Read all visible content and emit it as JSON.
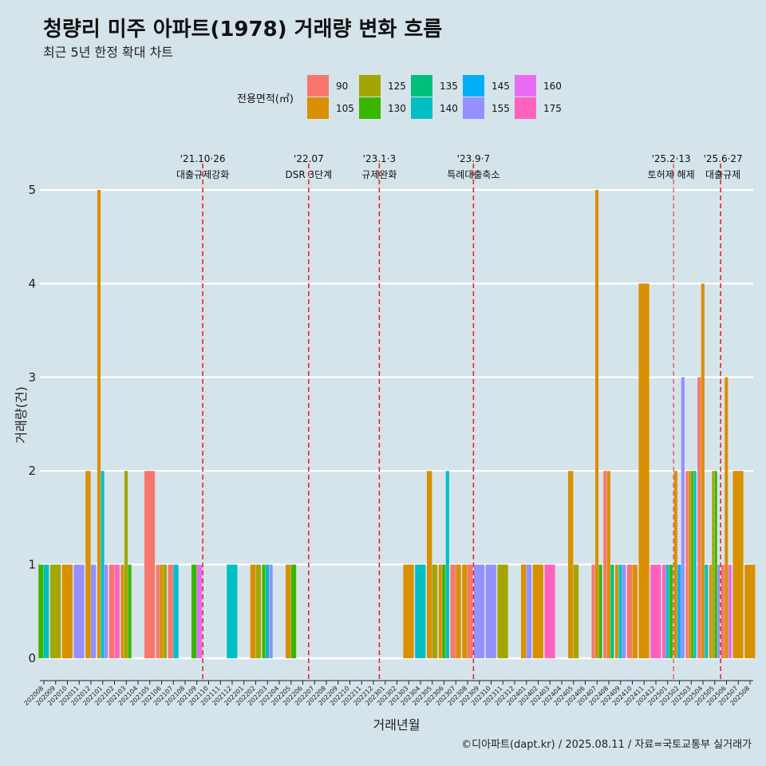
{
  "header": {
    "title": "청량리 미주 아파트(1978) 거래량 변화 흐름",
    "subtitle": "최근 5년 한정 확대 차트",
    "caption": "©디아파트(dapt.kr) / 2025.08.11 / 자료=국토교통부 실거래가"
  },
  "colors": {
    "background": "#d5e3ea",
    "event_line": "#e8262a",
    "gridline": "#ffffff"
  },
  "chart_data": {
    "type": "bar",
    "title": "청량리 미주 아파트(1978) 거래량 변화 흐름",
    "subtitle": "최근 5년 한정 확대 차트",
    "xlabel": "거래년월",
    "ylabel": "거래량(건)",
    "ylim": [
      0,
      5
    ],
    "yticks": [
      0,
      1,
      2,
      3,
      4,
      5
    ],
    "grid": true,
    "legend": {
      "title": "전용면적(㎡)",
      "position": "top",
      "entries": [
        {
          "name": "90",
          "color": "#f8766d"
        },
        {
          "name": "105",
          "color": "#d89000"
        },
        {
          "name": "125",
          "color": "#a3a500"
        },
        {
          "name": "130",
          "color": "#39b600"
        },
        {
          "name": "135",
          "color": "#00bf7d"
        },
        {
          "name": "140",
          "color": "#00bfc4"
        },
        {
          "name": "145",
          "color": "#00b0f6"
        },
        {
          "name": "155",
          "color": "#9590ff"
        },
        {
          "name": "160",
          "color": "#e76bf3"
        },
        {
          "name": "175",
          "color": "#ff62bc"
        }
      ]
    },
    "x_range": [
      "202008",
      "202508"
    ],
    "x_tick_labels": [
      "202008",
      "202009",
      "202010",
      "202011",
      "202012",
      "202101",
      "202102",
      "202103",
      "202104",
      "202105",
      "202106",
      "202107",
      "202108",
      "202109",
      "202110",
      "202111",
      "202112",
      "202201",
      "202202",
      "202203",
      "202204",
      "202205",
      "202206",
      "202207",
      "202208",
      "202209",
      "202210",
      "202211",
      "202212",
      "202301",
      "202302",
      "202303",
      "202304",
      "202305",
      "202306",
      "202307",
      "202308",
      "202309",
      "202310",
      "202311",
      "202312",
      "202401",
      "202402",
      "202403",
      "202404",
      "202405",
      "202406",
      "202407",
      "202408",
      "202409",
      "202410",
      "202411",
      "202412",
      "202501",
      "202502",
      "202503",
      "202504",
      "202505",
      "202506",
      "202507",
      "202508"
    ],
    "events": [
      {
        "month": "202110",
        "date_label": "'21.10·26",
        "label": "대출규제강화"
      },
      {
        "month": "202207",
        "date_label": "'22.07",
        "label": "DSR 3단계"
      },
      {
        "month": "202301",
        "date_label": "'23.1·3",
        "label": "규제완화"
      },
      {
        "month": "202309",
        "date_label": "'23.9·7",
        "label": "특례대출축소"
      },
      {
        "month": "202502",
        "date_label": "'25.2·13",
        "label": "토허제 해제"
      },
      {
        "month": "202506",
        "date_label": "'25.6·27",
        "label": "대출규제"
      }
    ],
    "series": [
      {
        "month": "202008",
        "bars": [
          {
            "area": "130",
            "count": 1
          },
          {
            "area": "140",
            "count": 1
          }
        ]
      },
      {
        "month": "202009",
        "bars": [
          {
            "area": "125",
            "count": 1
          }
        ]
      },
      {
        "month": "202010",
        "bars": [
          {
            "area": "105",
            "count": 1
          }
        ]
      },
      {
        "month": "202011",
        "bars": [
          {
            "area": "155",
            "count": 1
          }
        ]
      },
      {
        "month": "202012",
        "bars": [
          {
            "area": "105",
            "count": 2
          },
          {
            "area": "155",
            "count": 1
          }
        ]
      },
      {
        "month": "202101",
        "bars": [
          {
            "area": "105",
            "count": 5
          },
          {
            "area": "140",
            "count": 2
          },
          {
            "area": "155",
            "count": 1
          }
        ]
      },
      {
        "month": "202102",
        "bars": [
          {
            "area": "90",
            "count": 1
          },
          {
            "area": "175",
            "count": 1
          }
        ]
      },
      {
        "month": "202103",
        "bars": [
          {
            "area": "105",
            "count": 1
          },
          {
            "area": "125",
            "count": 2
          },
          {
            "area": "130",
            "count": 1
          }
        ]
      },
      {
        "month": "202105",
        "bars": [
          {
            "area": "90",
            "count": 2
          }
        ]
      },
      {
        "month": "202106",
        "bars": [
          {
            "area": "90",
            "count": 1
          },
          {
            "area": "105",
            "count": 1
          },
          {
            "area": "125",
            "count": 1
          }
        ]
      },
      {
        "month": "202107",
        "bars": [
          {
            "area": "90",
            "count": 1
          },
          {
            "area": "140",
            "count": 1
          }
        ]
      },
      {
        "month": "202109",
        "bars": [
          {
            "area": "130",
            "count": 1
          },
          {
            "area": "160",
            "count": 1
          }
        ]
      },
      {
        "month": "202112",
        "bars": [
          {
            "area": "140",
            "count": 1
          }
        ]
      },
      {
        "month": "202202",
        "bars": [
          {
            "area": "105",
            "count": 1
          },
          {
            "area": "125",
            "count": 1
          }
        ]
      },
      {
        "month": "202203",
        "bars": [
          {
            "area": "130",
            "count": 1
          },
          {
            "area": "140",
            "count": 1
          },
          {
            "area": "155",
            "count": 1
          }
        ]
      },
      {
        "month": "202205",
        "bars": [
          {
            "area": "105",
            "count": 1
          },
          {
            "area": "130",
            "count": 1
          }
        ]
      },
      {
        "month": "202303",
        "bars": [
          {
            "area": "105",
            "count": 1
          }
        ]
      },
      {
        "month": "202304",
        "bars": [
          {
            "area": "140",
            "count": 1
          }
        ]
      },
      {
        "month": "202305",
        "bars": [
          {
            "area": "105",
            "count": 2
          },
          {
            "area": "125",
            "count": 1
          }
        ]
      },
      {
        "month": "202306",
        "bars": [
          {
            "area": "105",
            "count": 1
          },
          {
            "area": "130",
            "count": 1
          },
          {
            "area": "140",
            "count": 2
          }
        ]
      },
      {
        "month": "202307",
        "bars": [
          {
            "area": "90",
            "count": 1
          },
          {
            "area": "105",
            "count": 1
          }
        ]
      },
      {
        "month": "202308",
        "bars": [
          {
            "area": "105",
            "count": 1
          },
          {
            "area": "90",
            "count": 1
          }
        ]
      },
      {
        "month": "202309",
        "bars": [
          {
            "area": "155",
            "count": 1
          }
        ]
      },
      {
        "month": "202310",
        "bars": [
          {
            "area": "155",
            "count": 1
          }
        ]
      },
      {
        "month": "202311",
        "bars": [
          {
            "area": "125",
            "count": 1
          }
        ]
      },
      {
        "month": "202401",
        "bars": [
          {
            "area": "105",
            "count": 1
          },
          {
            "area": "155",
            "count": 1
          }
        ]
      },
      {
        "month": "202402",
        "bars": [
          {
            "area": "105",
            "count": 1
          }
        ]
      },
      {
        "month": "202403",
        "bars": [
          {
            "area": "175",
            "count": 1
          }
        ]
      },
      {
        "month": "202405",
        "bars": [
          {
            "area": "105",
            "count": 2
          },
          {
            "area": "125",
            "count": 1
          }
        ]
      },
      {
        "month": "202407",
        "bars": [
          {
            "area": "90",
            "count": 1
          },
          {
            "area": "105",
            "count": 5
          },
          {
            "area": "130",
            "count": 1
          }
        ]
      },
      {
        "month": "202408",
        "bars": [
          {
            "area": "90",
            "count": 2
          },
          {
            "area": "105",
            "count": 2
          },
          {
            "area": "135",
            "count": 1
          }
        ]
      },
      {
        "month": "202409",
        "bars": [
          {
            "area": "105",
            "count": 1
          },
          {
            "area": "140",
            "count": 1
          },
          {
            "area": "155",
            "count": 1
          }
        ]
      },
      {
        "month": "202410",
        "bars": [
          {
            "area": "90",
            "count": 1
          },
          {
            "area": "105",
            "count": 1
          }
        ]
      },
      {
        "month": "202411",
        "bars": [
          {
            "area": "105",
            "count": 4
          }
        ]
      },
      {
        "month": "202412",
        "bars": [
          {
            "area": "175",
            "count": 1
          }
        ]
      },
      {
        "month": "202501",
        "bars": [
          {
            "area": "175",
            "count": 1
          },
          {
            "area": "140",
            "count": 1
          },
          {
            "area": "130",
            "count": 1
          }
        ]
      },
      {
        "month": "202502",
        "bars": [
          {
            "area": "105",
            "count": 2
          },
          {
            "area": "145",
            "count": 1
          },
          {
            "area": "155",
            "count": 3
          }
        ]
      },
      {
        "month": "202503",
        "bars": [
          {
            "area": "90",
            "count": 2
          },
          {
            "area": "105",
            "count": 2
          },
          {
            "area": "130",
            "count": 2
          },
          {
            "area": "140",
            "count": 2
          }
        ]
      },
      {
        "month": "202504",
        "bars": [
          {
            "area": "90",
            "count": 3
          },
          {
            "area": "105",
            "count": 4
          },
          {
            "area": "140",
            "count": 1
          }
        ]
      },
      {
        "month": "202505",
        "bars": [
          {
            "area": "105",
            "count": 1
          },
          {
            "area": "125",
            "count": 2
          },
          {
            "area": "130",
            "count": 2
          },
          {
            "area": "155",
            "count": 1
          }
        ]
      },
      {
        "month": "202506",
        "bars": [
          {
            "area": "90",
            "count": 1
          },
          {
            "area": "105",
            "count": 3
          },
          {
            "area": "160",
            "count": 1
          }
        ]
      },
      {
        "month": "202507",
        "bars": [
          {
            "area": "105",
            "count": 2
          }
        ]
      },
      {
        "month": "202508",
        "bars": [
          {
            "area": "105",
            "count": 1
          }
        ]
      }
    ]
  }
}
